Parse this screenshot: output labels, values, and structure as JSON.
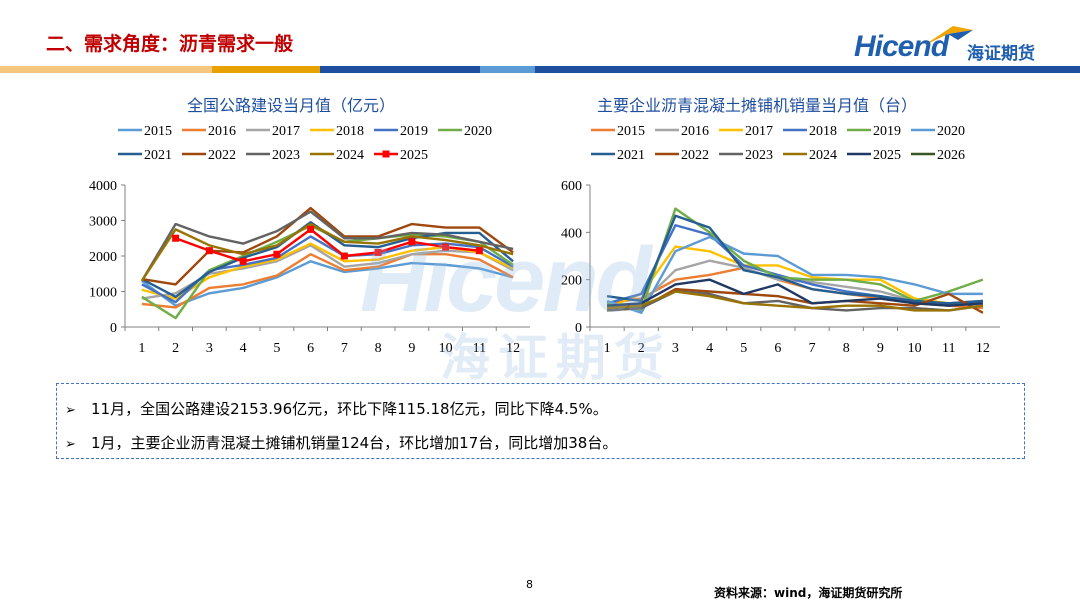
{
  "header": {
    "title": "二、需求角度：沥青需求一般",
    "logo_text": "Hicend",
    "logo_cn": "海证期货",
    "bar_colors": [
      "#f5c77e",
      "#e8a200",
      "#1f4e9e",
      "#5b9bd5",
      "#1f4e9e"
    ]
  },
  "watermark": {
    "text": "Hicend",
    "cn": "海证期货"
  },
  "chart_data": [
    {
      "type": "line",
      "title": "全国公路建设当月值（亿元）",
      "categories": [
        "1",
        "2",
        "3",
        "4",
        "5",
        "6",
        "7",
        "8",
        "9",
        "10",
        "11",
        "12"
      ],
      "ylim": [
        0,
        4000
      ],
      "yticks": [
        "0",
        "1000",
        "2000",
        "3000",
        "4000"
      ],
      "legend_rows": [
        [
          "2015",
          "2016",
          "2017",
          "2018",
          "2019",
          "2020"
        ],
        [
          "2021",
          "2022",
          "2023",
          "2024",
          "2025"
        ]
      ],
      "series": [
        {
          "name": "2015",
          "color": "#5b9bd5",
          "values": [
            1300,
            600,
            950,
            1100,
            1400,
            1850,
            1550,
            1650,
            1800,
            1750,
            1650,
            1400
          ]
        },
        {
          "name": "2016",
          "color": "#ed7d31",
          "values": [
            650,
            550,
            1100,
            1200,
            1450,
            2050,
            1600,
            1700,
            2050,
            2050,
            1900,
            1400
          ]
        },
        {
          "name": "2017",
          "color": "#a5a5a5",
          "values": [
            800,
            950,
            1500,
            1650,
            1850,
            2300,
            1700,
            1800,
            2050,
            2150,
            2100,
            1600
          ]
        },
        {
          "name": "2018",
          "color": "#ffc000",
          "values": [
            1050,
            800,
            1400,
            1700,
            1900,
            2350,
            1850,
            1900,
            2150,
            2250,
            2100,
            1650
          ]
        },
        {
          "name": "2019",
          "color": "#4472c4",
          "values": [
            1200,
            700,
            1600,
            1750,
            1950,
            2550,
            2000,
            2050,
            2300,
            2350,
            2250,
            1700
          ]
        },
        {
          "name": "2020",
          "color": "#70ad47",
          "values": [
            850,
            250,
            1600,
            2000,
            2400,
            2850,
            2400,
            2500,
            2600,
            2550,
            2400,
            1750
          ]
        },
        {
          "name": "2021",
          "color": "#255e91",
          "values": [
            1350,
            850,
            1550,
            1950,
            2250,
            2950,
            2300,
            2250,
            2500,
            2650,
            2650,
            1850
          ]
        },
        {
          "name": "2022",
          "color": "#9e480e",
          "values": [
            1350,
            1200,
            2150,
            2100,
            2550,
            3350,
            2550,
            2550,
            2900,
            2800,
            2800,
            2100
          ]
        },
        {
          "name": "2023",
          "color": "#636363",
          "values": [
            1300,
            2900,
            2550,
            2350,
            2700,
            3250,
            2500,
            2500,
            2650,
            2600,
            2400,
            2200
          ]
        },
        {
          "name": "2024",
          "color": "#997300",
          "values": [
            1300,
            2750,
            2300,
            2050,
            2300,
            2900,
            2400,
            2350,
            2550,
            2450,
            2300,
            2050
          ]
        },
        {
          "name": "2025",
          "color": "#ff0000",
          "marker": true,
          "values": [
            null,
            2500,
            2150,
            1850,
            2050,
            2750,
            2000,
            2100,
            2400,
            2250,
            2150,
            null
          ]
        }
      ]
    },
    {
      "type": "line",
      "title": "主要企业沥青混凝土摊铺机销量当月值（台）",
      "categories": [
        "1",
        "2",
        "3",
        "4",
        "5",
        "6",
        "7",
        "8",
        "9",
        "10",
        "11",
        "12"
      ],
      "ylim": [
        0,
        600
      ],
      "yticks": [
        "0",
        "200",
        "400",
        "600"
      ],
      "legend_rows": [
        [
          "2015",
          "2016",
          "2017",
          "2018",
          "2019",
          "2020"
        ],
        [
          "2021",
          "2022",
          "2023",
          "2024",
          "2025",
          "2026"
        ]
      ],
      "series": [
        {
          "name": "2015",
          "color": "#ed7d31",
          "values": [
            100,
            120,
            200,
            220,
            250,
            200,
            160,
            140,
            120,
            100,
            90,
            80
          ]
        },
        {
          "name": "2016",
          "color": "#a5a5a5",
          "values": [
            90,
            100,
            240,
            280,
            250,
            200,
            190,
            170,
            150,
            110,
            100,
            90
          ]
        },
        {
          "name": "2017",
          "color": "#ffc000",
          "values": [
            80,
            140,
            340,
            320,
            260,
            260,
            210,
            200,
            200,
            120,
            100,
            110
          ]
        },
        {
          "name": "2018",
          "color": "#4472c4",
          "values": [
            100,
            140,
            430,
            390,
            260,
            220,
            180,
            150,
            130,
            100,
            100,
            110
          ]
        },
        {
          "name": "2019",
          "color": "#70ad47",
          "values": [
            100,
            70,
            500,
            400,
            280,
            210,
            200,
            200,
            180,
            110,
            150,
            200
          ]
        },
        {
          "name": "2020",
          "color": "#5b9bd5",
          "values": [
            110,
            60,
            320,
            380,
            310,
            300,
            220,
            220,
            210,
            180,
            140,
            140
          ]
        },
        {
          "name": "2021",
          "color": "#255e91",
          "values": [
            130,
            110,
            470,
            420,
            240,
            210,
            160,
            140,
            130,
            110,
            100,
            110
          ]
        },
        {
          "name": "2022",
          "color": "#9e480e",
          "values": [
            70,
            80,
            160,
            150,
            140,
            130,
            100,
            110,
            100,
            90,
            140,
            60
          ]
        },
        {
          "name": "2023",
          "color": "#636363",
          "values": [
            70,
            80,
            150,
            140,
            100,
            110,
            80,
            70,
            80,
            80,
            70,
            90
          ]
        },
        {
          "name": "2024",
          "color": "#997300",
          "values": [
            80,
            90,
            150,
            130,
            100,
            90,
            80,
            90,
            90,
            70,
            70,
            90
          ]
        },
        {
          "name": "2025",
          "color": "#1f3864",
          "values": [
            90,
            100,
            180,
            200,
            140,
            180,
            100,
            110,
            120,
            100,
            90,
            100
          ]
        },
        {
          "name": "2026",
          "color": "#375623",
          "values": [
            120,
            null,
            null,
            null,
            null,
            null,
            null,
            null,
            null,
            null,
            null,
            null
          ]
        }
      ]
    }
  ],
  "notes": [
    "11月，全国公路建设2153.96亿元，环比下降115.18亿元，同比下降4.5%。",
    "1月，主要企业沥青混凝土摊铺机销量124台，环比增加17台，同比增加38台。"
  ],
  "note_bullet": "➢",
  "footer": {
    "page_number": "8",
    "source": "资料来源：wind，海证期货研究所"
  }
}
